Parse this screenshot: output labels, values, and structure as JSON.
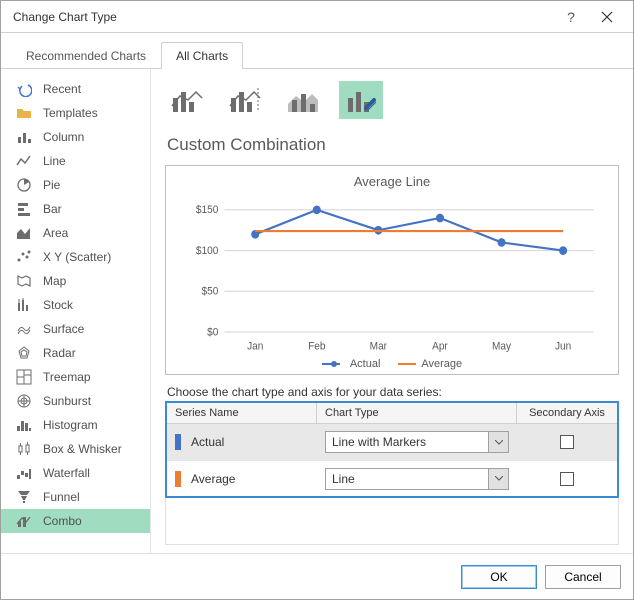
{
  "window": {
    "title": "Change Chart Type"
  },
  "tabs": {
    "recommended": "Recommended Charts",
    "all": "All Charts",
    "active": "all"
  },
  "sidebar": {
    "items": [
      {
        "label": "Recent",
        "icon": "undo"
      },
      {
        "label": "Templates",
        "icon": "folder"
      },
      {
        "label": "Column",
        "icon": "column"
      },
      {
        "label": "Line",
        "icon": "line"
      },
      {
        "label": "Pie",
        "icon": "pie"
      },
      {
        "label": "Bar",
        "icon": "bar"
      },
      {
        "label": "Area",
        "icon": "area"
      },
      {
        "label": "X Y (Scatter)",
        "icon": "scatter"
      },
      {
        "label": "Map",
        "icon": "map"
      },
      {
        "label": "Stock",
        "icon": "stock"
      },
      {
        "label": "Surface",
        "icon": "surface"
      },
      {
        "label": "Radar",
        "icon": "radar"
      },
      {
        "label": "Treemap",
        "icon": "treemap"
      },
      {
        "label": "Sunburst",
        "icon": "sunburst"
      },
      {
        "label": "Histogram",
        "icon": "histogram"
      },
      {
        "label": "Box & Whisker",
        "icon": "boxwhisker"
      },
      {
        "label": "Waterfall",
        "icon": "waterfall"
      },
      {
        "label": "Funnel",
        "icon": "funnel"
      },
      {
        "label": "Combo",
        "icon": "combo"
      }
    ],
    "active_index": 18
  },
  "section_title": "Custom Combination",
  "subtypes": {
    "selected_index": 3
  },
  "preview_chart": {
    "title": "Average Line",
    "type": "combo",
    "categories": [
      "Jan",
      "Feb",
      "Mar",
      "Apr",
      "May",
      "Jun"
    ],
    "y_ticks": [
      0,
      50,
      100,
      150
    ],
    "y_tick_prefix": "$",
    "ylim": [
      0,
      160
    ],
    "series": [
      {
        "name": "Actual",
        "type": "line_markers",
        "color": "#4472c4",
        "values": [
          120,
          150,
          125,
          140,
          110,
          100
        ]
      },
      {
        "name": "Average",
        "type": "line",
        "color": "#ed7d31",
        "values": [
          124,
          124,
          124,
          124,
          124,
          124
        ]
      }
    ],
    "grid_color": "#d9d9d9",
    "axis_color": "#bfbfbf",
    "text_color": "#595959",
    "background": "#ffffff",
    "label_fontsize": 10,
    "title_fontsize": 13,
    "line_width": 2,
    "marker_size": 4
  },
  "series_table": {
    "instruction": "Choose the chart type and axis for your data series:",
    "headers": {
      "series_name": "Series Name",
      "chart_type": "Chart Type",
      "secondary_axis": "Secondary Axis"
    },
    "rows": [
      {
        "name": "Actual",
        "color": "#4472c4",
        "chart_type": "Line with Markers",
        "secondary": false
      },
      {
        "name": "Average",
        "color": "#ed7d31",
        "chart_type": "Line",
        "secondary": false
      }
    ]
  },
  "footer": {
    "ok": "OK",
    "cancel": "Cancel"
  }
}
